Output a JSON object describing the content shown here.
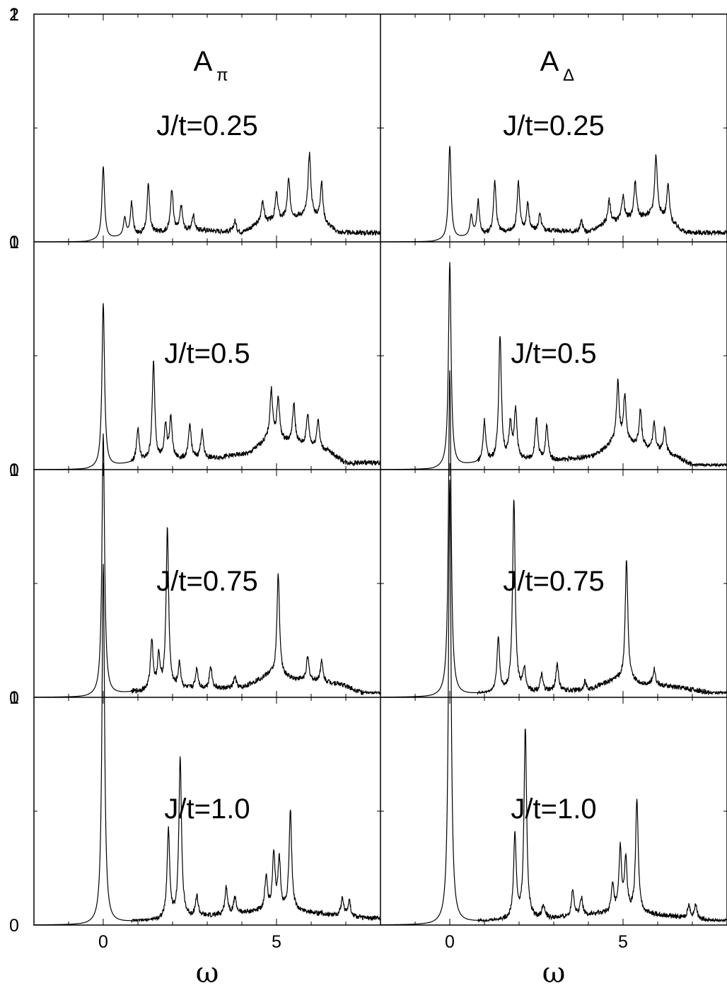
{
  "chart_data": {
    "type": "line",
    "layout": "grid 4 rows x 2 columns, shared axes",
    "xlabel": "ω",
    "xlim": [
      -2,
      8
    ],
    "ylim": [
      0,
      2
    ],
    "y_ticks": [
      "0",
      "1",
      "2"
    ],
    "x_ticks": [
      "0",
      "5"
    ],
    "columns": [
      {
        "name": "A",
        "subscript": "π"
      },
      {
        "name": "A",
        "subscript": "Δ"
      }
    ],
    "rows": [
      "J/t=0.25",
      "J/t=0.5",
      "J/t=0.75",
      "J/t=1.0"
    ],
    "panels": [
      {
        "row": 0,
        "col": 0,
        "label": "J/t=0.25",
        "peaks": [
          [
            0.0,
            0.32
          ],
          [
            0.62,
            0.08
          ],
          [
            0.82,
            0.14
          ],
          [
            1.3,
            0.21
          ],
          [
            1.98,
            0.19
          ],
          [
            2.25,
            0.11
          ],
          [
            2.6,
            0.07
          ],
          [
            3.8,
            0.05
          ],
          [
            4.6,
            0.1
          ],
          [
            5.0,
            0.12
          ],
          [
            5.35,
            0.17
          ],
          [
            5.95,
            0.27
          ],
          [
            6.3,
            0.17
          ]
        ],
        "background": [
          [
            -2,
            0
          ],
          [
            -0.5,
            0
          ],
          [
            1.5,
            0.04
          ],
          [
            3.0,
            0.05
          ],
          [
            4.0,
            0.04
          ],
          [
            4.5,
            0.08
          ],
          [
            6.0,
            0.12
          ],
          [
            6.8,
            0.04
          ],
          [
            8,
            0.04
          ]
        ]
      },
      {
        "row": 0,
        "col": 1,
        "label": "J/t=0.25",
        "peaks": [
          [
            0.0,
            0.41
          ],
          [
            0.62,
            0.09
          ],
          [
            0.82,
            0.15
          ],
          [
            1.3,
            0.23
          ],
          [
            1.98,
            0.22
          ],
          [
            2.25,
            0.12
          ],
          [
            2.6,
            0.07
          ],
          [
            3.8,
            0.05
          ],
          [
            4.6,
            0.1
          ],
          [
            5.0,
            0.11
          ],
          [
            5.35,
            0.16
          ],
          [
            5.95,
            0.26
          ],
          [
            6.3,
            0.16
          ]
        ],
        "background": [
          [
            -2,
            0
          ],
          [
            -0.5,
            0
          ],
          [
            1.5,
            0.04
          ],
          [
            3.0,
            0.05
          ],
          [
            4.0,
            0.04
          ],
          [
            4.5,
            0.08
          ],
          [
            6.0,
            0.12
          ],
          [
            6.8,
            0.04
          ],
          [
            8,
            0.04
          ]
        ]
      },
      {
        "row": 1,
        "col": 0,
        "label": "J/t=0.5",
        "peaks": [
          [
            0.0,
            0.72
          ],
          [
            1.0,
            0.15
          ],
          [
            1.45,
            0.43
          ],
          [
            1.8,
            0.15
          ],
          [
            1.95,
            0.18
          ],
          [
            2.5,
            0.15
          ],
          [
            2.85,
            0.12
          ],
          [
            4.85,
            0.21
          ],
          [
            5.05,
            0.18
          ],
          [
            5.5,
            0.17
          ],
          [
            5.9,
            0.14
          ],
          [
            6.2,
            0.13
          ]
        ],
        "background": [
          [
            -2,
            0
          ],
          [
            -0.5,
            0
          ],
          [
            1.5,
            0.04
          ],
          [
            3.2,
            0.05
          ],
          [
            4.2,
            0.07
          ],
          [
            4.8,
            0.14
          ],
          [
            6.5,
            0.08
          ],
          [
            7.0,
            0.03
          ],
          [
            8,
            0.03
          ]
        ]
      },
      {
        "row": 1,
        "col": 1,
        "label": "J/t=0.5",
        "peaks": [
          [
            0.0,
            0.9
          ],
          [
            1.0,
            0.18
          ],
          [
            1.45,
            0.55
          ],
          [
            1.75,
            0.16
          ],
          [
            1.9,
            0.22
          ],
          [
            2.5,
            0.18
          ],
          [
            2.8,
            0.15
          ],
          [
            4.85,
            0.25
          ],
          [
            5.05,
            0.2
          ],
          [
            5.5,
            0.16
          ],
          [
            5.9,
            0.12
          ],
          [
            6.2,
            0.11
          ]
        ],
        "background": [
          [
            -2,
            0
          ],
          [
            -0.5,
            0
          ],
          [
            1.5,
            0.04
          ],
          [
            3.2,
            0.04
          ],
          [
            4.2,
            0.06
          ],
          [
            4.8,
            0.13
          ],
          [
            6.5,
            0.06
          ],
          [
            7.0,
            0.02
          ],
          [
            8,
            0.02
          ]
        ]
      },
      {
        "row": 2,
        "col": 0,
        "label": "J/t=0.75",
        "peaks": [
          [
            0.0,
            1.15
          ],
          [
            1.4,
            0.22
          ],
          [
            1.6,
            0.14
          ],
          [
            1.85,
            0.7
          ],
          [
            2.2,
            0.11
          ],
          [
            2.7,
            0.09
          ],
          [
            3.1,
            0.1
          ],
          [
            3.8,
            0.05
          ],
          [
            5.05,
            0.45
          ],
          [
            5.9,
            0.1
          ],
          [
            6.3,
            0.09
          ]
        ],
        "background": [
          [
            -2,
            0
          ],
          [
            -0.5,
            0
          ],
          [
            1.5,
            0.03
          ],
          [
            4.0,
            0.04
          ],
          [
            4.8,
            0.1
          ],
          [
            5.5,
            0.08
          ],
          [
            6.8,
            0.06
          ],
          [
            7.5,
            0.02
          ],
          [
            8,
            0.02
          ]
        ]
      },
      {
        "row": 2,
        "col": 1,
        "label": "J/t=0.75",
        "peaks": [
          [
            0.0,
            1.43
          ],
          [
            1.4,
            0.24
          ],
          [
            1.85,
            0.85
          ],
          [
            2.15,
            0.1
          ],
          [
            2.65,
            0.07
          ],
          [
            3.1,
            0.12
          ],
          [
            3.9,
            0.04
          ],
          [
            5.1,
            0.54
          ],
          [
            5.9,
            0.07
          ]
        ],
        "background": [
          [
            -2,
            0
          ],
          [
            -0.5,
            0
          ],
          [
            1.5,
            0.02
          ],
          [
            4.0,
            0.03
          ],
          [
            4.8,
            0.08
          ],
          [
            5.5,
            0.06
          ],
          [
            6.8,
            0.04
          ],
          [
            7.5,
            0.02
          ],
          [
            8,
            0.02
          ]
        ]
      },
      {
        "row": 3,
        "col": 0,
        "label": "J/t=1.0",
        "peaks": [
          [
            0.0,
            1.58
          ],
          [
            1.88,
            0.39
          ],
          [
            2.22,
            0.71
          ],
          [
            2.7,
            0.09
          ],
          [
            3.55,
            0.12
          ],
          [
            3.8,
            0.07
          ],
          [
            4.7,
            0.15
          ],
          [
            4.92,
            0.24
          ],
          [
            5.08,
            0.22
          ],
          [
            5.4,
            0.44
          ],
          [
            6.9,
            0.08
          ],
          [
            7.1,
            0.07
          ]
        ],
        "background": [
          [
            -2,
            0
          ],
          [
            -0.5,
            0
          ],
          [
            1.5,
            0.02
          ],
          [
            3.2,
            0.04
          ],
          [
            4.5,
            0.06
          ],
          [
            5.6,
            0.06
          ],
          [
            7.5,
            0.03
          ],
          [
            8,
            0.03
          ]
        ]
      },
      {
        "row": 3,
        "col": 1,
        "label": "J/t=1.0",
        "peaks": [
          [
            0.0,
            1.95
          ],
          [
            1.88,
            0.37
          ],
          [
            2.18,
            0.84
          ],
          [
            2.7,
            0.06
          ],
          [
            3.55,
            0.12
          ],
          [
            3.8,
            0.08
          ],
          [
            4.7,
            0.12
          ],
          [
            4.92,
            0.28
          ],
          [
            5.08,
            0.23
          ],
          [
            5.4,
            0.5
          ],
          [
            6.9,
            0.06
          ],
          [
            7.1,
            0.06
          ]
        ],
        "background": [
          [
            -2,
            0
          ],
          [
            -0.5,
            0
          ],
          [
            1.5,
            0.02
          ],
          [
            3.2,
            0.03
          ],
          [
            4.5,
            0.05
          ],
          [
            5.6,
            0.05
          ],
          [
            7.5,
            0.02
          ],
          [
            8,
            0.02
          ]
        ]
      }
    ]
  }
}
